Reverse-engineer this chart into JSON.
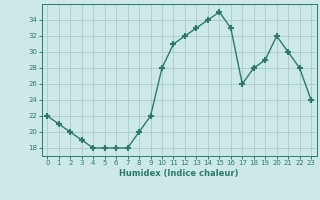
{
  "x": [
    0,
    1,
    2,
    3,
    4,
    5,
    6,
    7,
    8,
    9,
    10,
    11,
    12,
    13,
    14,
    15,
    16,
    17,
    18,
    19,
    20,
    21,
    22,
    23
  ],
  "y": [
    22,
    21,
    20,
    19,
    18,
    18,
    18,
    18,
    20,
    22,
    28,
    31,
    32,
    33,
    34,
    35,
    33,
    26,
    28,
    29,
    32,
    30,
    28,
    24
  ],
  "line_color": "#2d7a6a",
  "marker": "+",
  "marker_size": 5,
  "marker_linewidth": 1.5,
  "linewidth": 1.0,
  "bg_color": "#cce8e8",
  "grid_color": "#aacaca",
  "xlabel": "Humidex (Indice chaleur)",
  "xlim": [
    -0.5,
    23.5
  ],
  "ylim": [
    17,
    36
  ],
  "yticks": [
    18,
    20,
    22,
    24,
    26,
    28,
    30,
    32,
    34
  ],
  "xticks": [
    0,
    1,
    2,
    3,
    4,
    5,
    6,
    7,
    8,
    9,
    10,
    11,
    12,
    13,
    14,
    15,
    16,
    17,
    18,
    19,
    20,
    21,
    22,
    23
  ]
}
